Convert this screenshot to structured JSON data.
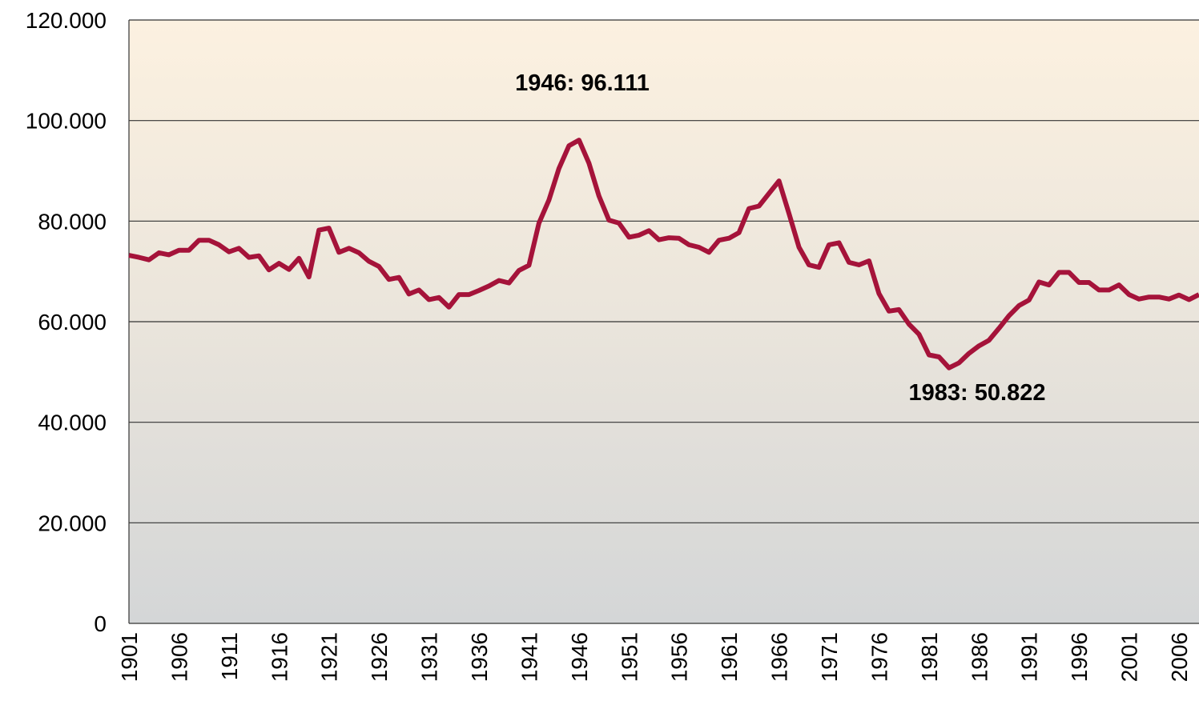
{
  "chart_data": {
    "type": "line",
    "color": "#a5133a",
    "grid": true,
    "annotations": [
      "1946: 96.111",
      "1983: 50.822"
    ],
    "x": [
      1901,
      1902,
      1903,
      1904,
      1905,
      1906,
      1907,
      1908,
      1909,
      1910,
      1911,
      1912,
      1913,
      1914,
      1915,
      1916,
      1917,
      1918,
      1919,
      1920,
      1921,
      1922,
      1923,
      1924,
      1925,
      1926,
      1927,
      1928,
      1929,
      1930,
      1931,
      1932,
      1933,
      1934,
      1935,
      1936,
      1937,
      1938,
      1939,
      1940,
      1941,
      1942,
      1943,
      1944,
      1945,
      1946,
      1947,
      1948,
      1949,
      1950,
      1951,
      1952,
      1953,
      1954,
      1955,
      1956,
      1957,
      1958,
      1959,
      1960,
      1961,
      1962,
      1963,
      1964,
      1965,
      1966,
      1967,
      1968,
      1969,
      1970,
      1971,
      1972,
      1973,
      1974,
      1975,
      1976,
      1977,
      1978,
      1979,
      1980,
      1981,
      1982,
      1983,
      1984,
      1985,
      1986,
      1987,
      1988,
      1989,
      1990,
      1991,
      1992,
      1993,
      1994,
      1995,
      1996,
      1997,
      1998,
      1999,
      2000,
      2001,
      2002,
      2003,
      2004,
      2005,
      2006,
      2007,
      2008
    ],
    "values": [
      73200,
      72800,
      72300,
      73700,
      73300,
      74200,
      74200,
      76200,
      76200,
      75300,
      73900,
      74600,
      72800,
      73100,
      70300,
      71600,
      70400,
      72600,
      68900,
      78200,
      78600,
      73800,
      74600,
      73700,
      72000,
      71000,
      68400,
      68800,
      65500,
      66300,
      64400,
      64800,
      62900,
      65400,
      65400,
      66200,
      67100,
      68200,
      67700,
      70200,
      71200,
      79600,
      84200,
      90500,
      95000,
      96111,
      91500,
      85000,
      80200,
      79600,
      76800,
      77200,
      78100,
      76300,
      76700,
      76600,
      75300,
      74800,
      73800,
      76200,
      76600,
      77700,
      82500,
      83000,
      85500,
      88000,
      81500,
      74800,
      71300,
      70800,
      75300,
      75700,
      71800,
      71300,
      72100,
      65600,
      62100,
      62400,
      59500,
      57500,
      53400,
      53000,
      50822,
      51800,
      53700,
      55200,
      56300,
      58700,
      61200,
      63200,
      64300,
      67900,
      67300,
      69800,
      69800,
      67800,
      67800,
      66300,
      66300,
      67300,
      65400,
      64500,
      64900,
      64900,
      64500,
      65300,
      64400,
      65400
    ],
    "xlim": [
      1901,
      2008
    ],
    "xticks": [
      1901,
      1906,
      1911,
      1916,
      1921,
      1926,
      1931,
      1936,
      1941,
      1946,
      1951,
      1956,
      1961,
      1966,
      1971,
      1976,
      1981,
      1986,
      1991,
      1996,
      2001,
      2006
    ],
    "ylim": [
      0,
      120000
    ],
    "yticks": [
      {
        "value": 0,
        "label": "0"
      },
      {
        "value": 20000,
        "label": "20.000"
      },
      {
        "value": 40000,
        "label": "40.000"
      },
      {
        "value": 60000,
        "label": "60.000"
      },
      {
        "value": 80000,
        "label": "80.000"
      },
      {
        "value": 100000,
        "label": "100.000"
      },
      {
        "value": 120000,
        "label": "120.000"
      }
    ]
  }
}
